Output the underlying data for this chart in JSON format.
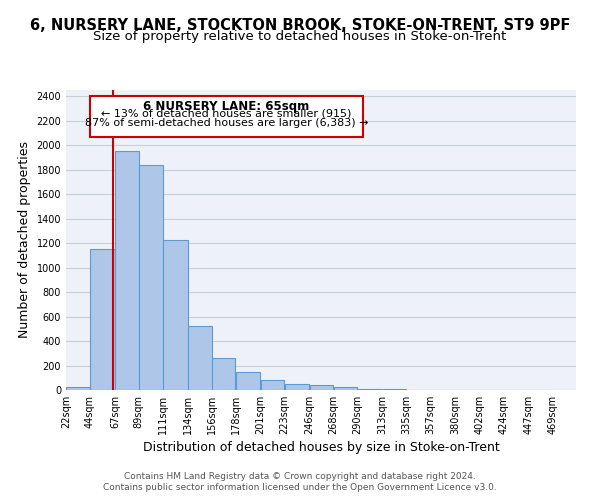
{
  "title_line1": "6, NURSERY LANE, STOCKTON BROOK, STOKE-ON-TRENT, ST9 9PF",
  "title_line2": "Size of property relative to detached houses in Stoke-on-Trent",
  "xlabel": "Distribution of detached houses by size in Stoke-on-Trent",
  "ylabel": "Number of detached properties",
  "bar_left_edges": [
    22,
    44,
    67,
    89,
    111,
    134,
    156,
    178,
    201,
    223,
    246,
    268,
    290,
    313,
    335,
    357,
    380,
    402,
    424,
    447
  ],
  "bar_heights": [
    25,
    1150,
    1950,
    1840,
    1225,
    520,
    265,
    148,
    80,
    52,
    38,
    28,
    10,
    5,
    3,
    2,
    1,
    1,
    0,
    0
  ],
  "bar_widths": [
    22,
    23,
    22,
    22,
    23,
    22,
    22,
    23,
    22,
    23,
    22,
    22,
    23,
    22,
    22,
    23,
    22,
    22,
    23,
    22
  ],
  "bar_color": "#aec6e8",
  "bar_edge_color": "#5b9bd5",
  "bar_edge_width": 0.8,
  "property_line_x": 65,
  "property_line_color": "#cc0000",
  "property_box_text_line1": "6 NURSERY LANE: 65sqm",
  "property_box_text_line2": "← 13% of detached houses are smaller (915)",
  "property_box_text_line3": "87% of semi-detached houses are larger (6,383) →",
  "ylim": [
    0,
    2450
  ],
  "xlim": [
    22,
    491
  ],
  "tick_labels": [
    "22sqm",
    "44sqm",
    "67sqm",
    "89sqm",
    "111sqm",
    "134sqm",
    "156sqm",
    "178sqm",
    "201sqm",
    "223sqm",
    "246sqm",
    "268sqm",
    "290sqm",
    "313sqm",
    "335sqm",
    "357sqm",
    "380sqm",
    "402sqm",
    "424sqm",
    "447sqm",
    "469sqm"
  ],
  "tick_positions": [
    22,
    44,
    67,
    89,
    111,
    134,
    156,
    178,
    201,
    223,
    246,
    268,
    290,
    313,
    335,
    357,
    380,
    402,
    424,
    447,
    469
  ],
  "yticks": [
    0,
    200,
    400,
    600,
    800,
    1000,
    1200,
    1400,
    1600,
    1800,
    2000,
    2200,
    2400
  ],
  "footer_line1": "Contains HM Land Registry data © Crown copyright and database right 2024.",
  "footer_line2": "Contains public sector information licensed under the Open Government Licence v3.0.",
  "background_color": "#ffffff",
  "plot_bg_color": "#eef2f8",
  "grid_color": "#c8cfd8",
  "title_fontsize": 10.5,
  "subtitle_fontsize": 9.5,
  "axis_label_fontsize": 9,
  "tick_fontsize": 7,
  "footer_fontsize": 6.5,
  "annotation_fontsize": 8.5
}
